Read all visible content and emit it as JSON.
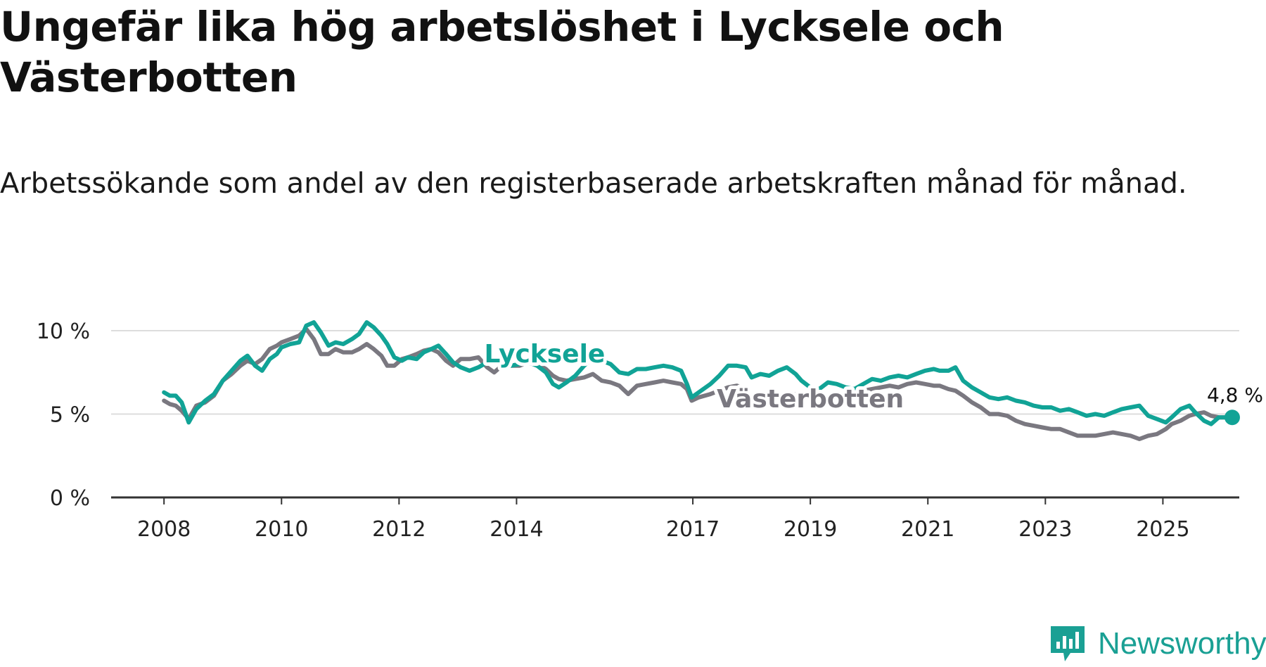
{
  "title": "Ungefär lika hög arbetslöshet i Lycksele och Västerbotten",
  "subtitle": "Arbetssökande som andel av den registerbaserade arbetskraften månad för månad.",
  "brand": {
    "name": "Newsworthy",
    "color": "#1aa094"
  },
  "colors": {
    "lycksele": "#11a396",
    "vasterbotten": "#7a7880",
    "grid": "#dddddd",
    "axis": "#333333"
  },
  "chart_data": {
    "type": "line",
    "title": "Ungefär lika hög arbetslöshet i Lycksele och Västerbotten",
    "xlabel": "",
    "ylabel": "",
    "ylim": [
      0,
      10
    ],
    "xlim": [
      2007.1,
      2026.3
    ],
    "yticks": [
      {
        "value": 0,
        "label": "0 %"
      },
      {
        "value": 5,
        "label": "5 %"
      },
      {
        "value": 10,
        "label": "10 %"
      }
    ],
    "xticks": [
      {
        "value": 2008,
        "label": "2008"
      },
      {
        "value": 2010,
        "label": "2010"
      },
      {
        "value": 2012,
        "label": "2012"
      },
      {
        "value": 2014,
        "label": "2014"
      },
      {
        "value": 2017,
        "label": "2017"
      },
      {
        "value": 2019,
        "label": "2019"
      },
      {
        "value": 2021,
        "label": "2021"
      },
      {
        "value": 2023,
        "label": "2023"
      },
      {
        "value": 2025,
        "label": "2025"
      }
    ],
    "grid": true,
    "last_value_label": "4,8 %",
    "series": [
      {
        "name": "Lycksele",
        "label": "Lycksele",
        "color": "#11a396",
        "points": [
          [
            2008.0,
            6.3
          ],
          [
            2008.1,
            6.1
          ],
          [
            2008.2,
            6.1
          ],
          [
            2008.3,
            5.7
          ],
          [
            2008.42,
            4.5
          ],
          [
            2008.55,
            5.3
          ],
          [
            2008.7,
            5.8
          ],
          [
            2008.85,
            6.2
          ],
          [
            2009.0,
            7.0
          ],
          [
            2009.15,
            7.6
          ],
          [
            2009.3,
            8.2
          ],
          [
            2009.42,
            8.5
          ],
          [
            2009.55,
            7.9
          ],
          [
            2009.67,
            7.6
          ],
          [
            2009.8,
            8.3
          ],
          [
            2009.92,
            8.6
          ],
          [
            2010.0,
            9.0
          ],
          [
            2010.15,
            9.2
          ],
          [
            2010.3,
            9.3
          ],
          [
            2010.42,
            10.3
          ],
          [
            2010.55,
            10.5
          ],
          [
            2010.67,
            9.9
          ],
          [
            2010.8,
            9.1
          ],
          [
            2010.92,
            9.3
          ],
          [
            2011.05,
            9.2
          ],
          [
            2011.2,
            9.5
          ],
          [
            2011.32,
            9.8
          ],
          [
            2011.45,
            10.5
          ],
          [
            2011.57,
            10.2
          ],
          [
            2011.7,
            9.7
          ],
          [
            2011.8,
            9.2
          ],
          [
            2011.92,
            8.4
          ],
          [
            2012.05,
            8.2
          ],
          [
            2012.15,
            8.4
          ],
          [
            2012.3,
            8.3
          ],
          [
            2012.42,
            8.7
          ],
          [
            2012.55,
            8.9
          ],
          [
            2012.67,
            9.1
          ],
          [
            2012.8,
            8.6
          ],
          [
            2012.92,
            8.1
          ],
          [
            2013.05,
            7.8
          ],
          [
            2013.2,
            7.6
          ],
          [
            2013.35,
            7.8
          ],
          [
            2013.5,
            8.1
          ],
          [
            2013.62,
            8.4
          ],
          [
            2013.75,
            8.1
          ],
          [
            2013.9,
            7.9
          ],
          [
            2014.05,
            8.0
          ],
          [
            2014.2,
            8.1
          ],
          [
            2014.35,
            7.9
          ],
          [
            2014.5,
            7.5
          ],
          [
            2014.62,
            6.8
          ],
          [
            2014.72,
            6.6
          ],
          [
            2014.85,
            6.9
          ],
          [
            2015.0,
            7.3
          ],
          [
            2015.15,
            7.9
          ],
          [
            2015.3,
            8.4
          ],
          [
            2015.45,
            8.2
          ],
          [
            2015.6,
            8.0
          ],
          [
            2015.75,
            7.5
          ],
          [
            2015.9,
            7.4
          ],
          [
            2016.05,
            7.7
          ],
          [
            2016.2,
            7.7
          ],
          [
            2016.35,
            7.8
          ],
          [
            2016.5,
            7.9
          ],
          [
            2016.65,
            7.8
          ],
          [
            2016.8,
            7.6
          ],
          [
            2016.9,
            6.8
          ],
          [
            2016.98,
            6.0
          ],
          [
            2017.1,
            6.3
          ],
          [
            2017.3,
            6.8
          ],
          [
            2017.45,
            7.3
          ],
          [
            2017.6,
            7.9
          ],
          [
            2017.75,
            7.9
          ],
          [
            2017.9,
            7.8
          ],
          [
            2018.0,
            7.2
          ],
          [
            2018.15,
            7.4
          ],
          [
            2018.3,
            7.3
          ],
          [
            2018.45,
            7.6
          ],
          [
            2018.6,
            7.8
          ],
          [
            2018.75,
            7.4
          ],
          [
            2018.85,
            7.0
          ],
          [
            2019.0,
            6.6
          ],
          [
            2019.15,
            6.5
          ],
          [
            2019.3,
            6.9
          ],
          [
            2019.45,
            6.8
          ],
          [
            2019.6,
            6.6
          ],
          [
            2019.75,
            6.5
          ],
          [
            2019.9,
            6.8
          ],
          [
            2020.05,
            7.1
          ],
          [
            2020.2,
            7.0
          ],
          [
            2020.35,
            7.2
          ],
          [
            2020.5,
            7.3
          ],
          [
            2020.65,
            7.2
          ],
          [
            2020.8,
            7.4
          ],
          [
            2020.95,
            7.6
          ],
          [
            2021.1,
            7.7
          ],
          [
            2021.2,
            7.6
          ],
          [
            2021.35,
            7.6
          ],
          [
            2021.47,
            7.8
          ],
          [
            2021.6,
            7.0
          ],
          [
            2021.75,
            6.6
          ],
          [
            2021.9,
            6.3
          ],
          [
            2022.05,
            6.0
          ],
          [
            2022.2,
            5.9
          ],
          [
            2022.35,
            6.0
          ],
          [
            2022.5,
            5.8
          ],
          [
            2022.65,
            5.7
          ],
          [
            2022.8,
            5.5
          ],
          [
            2022.95,
            5.4
          ],
          [
            2023.1,
            5.4
          ],
          [
            2023.25,
            5.2
          ],
          [
            2023.4,
            5.3
          ],
          [
            2023.55,
            5.1
          ],
          [
            2023.7,
            4.9
          ],
          [
            2023.85,
            5.0
          ],
          [
            2024.0,
            4.9
          ],
          [
            2024.15,
            5.1
          ],
          [
            2024.3,
            5.3
          ],
          [
            2024.45,
            5.4
          ],
          [
            2024.6,
            5.5
          ],
          [
            2024.75,
            4.9
          ],
          [
            2024.9,
            4.7
          ],
          [
            2025.05,
            4.5
          ],
          [
            2025.15,
            4.8
          ],
          [
            2025.3,
            5.3
          ],
          [
            2025.45,
            5.5
          ],
          [
            2025.55,
            5.1
          ],
          [
            2025.7,
            4.6
          ],
          [
            2025.82,
            4.4
          ],
          [
            2025.95,
            4.8
          ],
          [
            2026.05,
            4.8
          ],
          [
            2026.18,
            4.8
          ]
        ]
      },
      {
        "name": "Västerbotten",
        "label": "Västerbotten",
        "color": "#7a7880",
        "points": [
          [
            2008.0,
            5.8
          ],
          [
            2008.1,
            5.6
          ],
          [
            2008.2,
            5.5
          ],
          [
            2008.3,
            5.2
          ],
          [
            2008.42,
            4.7
          ],
          [
            2008.55,
            5.5
          ],
          [
            2008.7,
            5.7
          ],
          [
            2008.85,
            6.1
          ],
          [
            2009.0,
            7.0
          ],
          [
            2009.15,
            7.4
          ],
          [
            2009.3,
            7.9
          ],
          [
            2009.42,
            8.2
          ],
          [
            2009.55,
            8.0
          ],
          [
            2009.67,
            8.3
          ],
          [
            2009.8,
            8.9
          ],
          [
            2009.92,
            9.1
          ],
          [
            2010.0,
            9.3
          ],
          [
            2010.15,
            9.5
          ],
          [
            2010.3,
            9.7
          ],
          [
            2010.42,
            10.1
          ],
          [
            2010.55,
            9.5
          ],
          [
            2010.67,
            8.6
          ],
          [
            2010.8,
            8.6
          ],
          [
            2010.92,
            8.9
          ],
          [
            2011.05,
            8.7
          ],
          [
            2011.2,
            8.7
          ],
          [
            2011.32,
            8.9
          ],
          [
            2011.45,
            9.2
          ],
          [
            2011.57,
            8.9
          ],
          [
            2011.7,
            8.5
          ],
          [
            2011.8,
            7.9
          ],
          [
            2011.92,
            7.9
          ],
          [
            2012.05,
            8.3
          ],
          [
            2012.15,
            8.4
          ],
          [
            2012.3,
            8.6
          ],
          [
            2012.42,
            8.8
          ],
          [
            2012.55,
            8.9
          ],
          [
            2012.67,
            8.7
          ],
          [
            2012.8,
            8.2
          ],
          [
            2012.92,
            7.9
          ],
          [
            2013.05,
            8.3
          ],
          [
            2013.2,
            8.3
          ],
          [
            2013.35,
            8.4
          ],
          [
            2013.5,
            7.8
          ],
          [
            2013.62,
            7.5
          ],
          [
            2013.75,
            7.9
          ],
          [
            2013.9,
            7.9
          ],
          [
            2014.05,
            7.9
          ],
          [
            2014.2,
            8.1
          ],
          [
            2014.35,
            8.0
          ],
          [
            2014.5,
            7.7
          ],
          [
            2014.62,
            7.3
          ],
          [
            2014.72,
            7.1
          ],
          [
            2014.85,
            7.0
          ],
          [
            2015.0,
            7.1
          ],
          [
            2015.15,
            7.2
          ],
          [
            2015.3,
            7.4
          ],
          [
            2015.45,
            7.0
          ],
          [
            2015.6,
            6.9
          ],
          [
            2015.75,
            6.7
          ],
          [
            2015.9,
            6.2
          ],
          [
            2016.05,
            6.7
          ],
          [
            2016.2,
            6.8
          ],
          [
            2016.35,
            6.9
          ],
          [
            2016.5,
            7.0
          ],
          [
            2016.65,
            6.9
          ],
          [
            2016.8,
            6.8
          ],
          [
            2016.9,
            6.5
          ],
          [
            2016.98,
            5.8
          ],
          [
            2017.1,
            6.0
          ],
          [
            2017.3,
            6.2
          ],
          [
            2017.45,
            6.4
          ],
          [
            2017.6,
            6.6
          ],
          [
            2017.75,
            6.7
          ],
          [
            2017.9,
            6.5
          ],
          [
            2018.0,
            5.9
          ],
          [
            2018.15,
            5.8
          ],
          [
            2018.3,
            5.9
          ],
          [
            2018.45,
            6.0
          ],
          [
            2018.6,
            6.2
          ],
          [
            2018.75,
            6.2
          ],
          [
            2018.85,
            6.1
          ],
          [
            2019.0,
            6.0
          ],
          [
            2019.15,
            6.0
          ],
          [
            2019.3,
            6.0
          ],
          [
            2019.45,
            6.0
          ],
          [
            2019.6,
            6.2
          ],
          [
            2019.75,
            6.3
          ],
          [
            2019.9,
            6.4
          ],
          [
            2020.05,
            6.5
          ],
          [
            2020.2,
            6.6
          ],
          [
            2020.35,
            6.7
          ],
          [
            2020.5,
            6.6
          ],
          [
            2020.65,
            6.8
          ],
          [
            2020.8,
            6.9
          ],
          [
            2020.95,
            6.8
          ],
          [
            2021.1,
            6.7
          ],
          [
            2021.2,
            6.7
          ],
          [
            2021.35,
            6.5
          ],
          [
            2021.47,
            6.4
          ],
          [
            2021.6,
            6.1
          ],
          [
            2021.75,
            5.7
          ],
          [
            2021.9,
            5.4
          ],
          [
            2022.05,
            5.0
          ],
          [
            2022.2,
            5.0
          ],
          [
            2022.35,
            4.9
          ],
          [
            2022.5,
            4.6
          ],
          [
            2022.65,
            4.4
          ],
          [
            2022.8,
            4.3
          ],
          [
            2022.95,
            4.2
          ],
          [
            2023.1,
            4.1
          ],
          [
            2023.25,
            4.1
          ],
          [
            2023.4,
            3.9
          ],
          [
            2023.55,
            3.7
          ],
          [
            2023.7,
            3.7
          ],
          [
            2023.85,
            3.7
          ],
          [
            2024.0,
            3.8
          ],
          [
            2024.15,
            3.9
          ],
          [
            2024.3,
            3.8
          ],
          [
            2024.45,
            3.7
          ],
          [
            2024.6,
            3.5
          ],
          [
            2024.75,
            3.7
          ],
          [
            2024.9,
            3.8
          ],
          [
            2025.05,
            4.1
          ],
          [
            2025.15,
            4.4
          ],
          [
            2025.3,
            4.6
          ],
          [
            2025.45,
            4.9
          ],
          [
            2025.55,
            5.0
          ],
          [
            2025.7,
            5.1
          ],
          [
            2025.82,
            4.9
          ],
          [
            2025.95,
            4.8
          ],
          [
            2026.05,
            4.8
          ],
          [
            2026.18,
            4.8
          ]
        ]
      }
    ]
  }
}
